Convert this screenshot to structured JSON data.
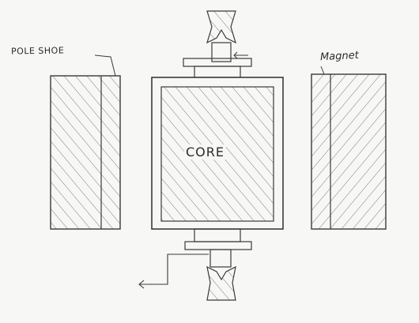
{
  "labels": {
    "pole_shoe": "POLE SHOE",
    "core": "CORE",
    "magnet": "Magnet"
  },
  "colors": {
    "paper": "#f7f7f5",
    "pencil": "#3a3a3a",
    "hatch": "#6d6d6d"
  }
}
